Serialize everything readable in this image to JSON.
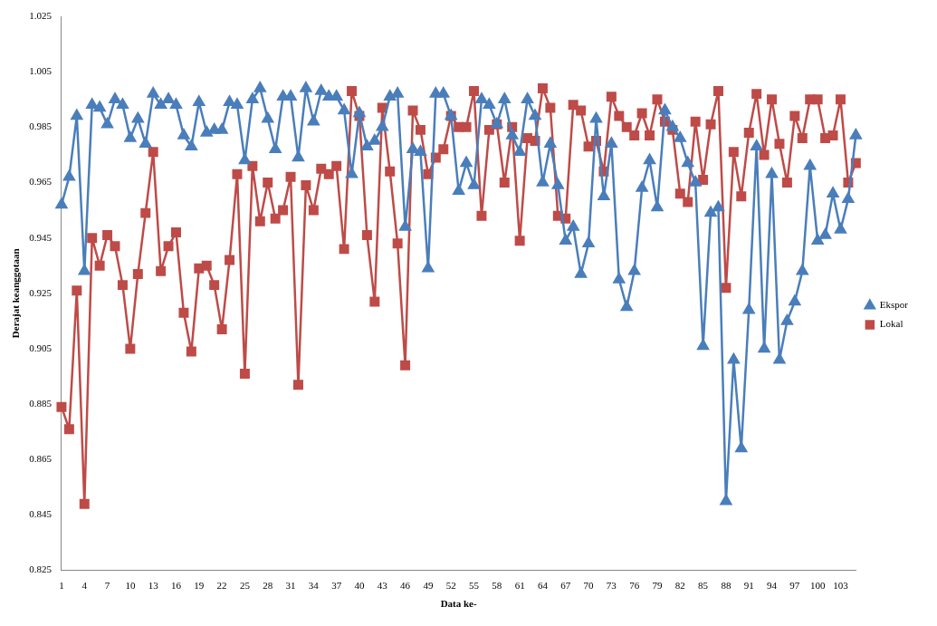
{
  "chart_data": {
    "type": "line",
    "xlabel": "Data ke-",
    "ylabel": "Derajat keanggotaan",
    "categories": [
      "1",
      null,
      null,
      "4",
      null,
      null,
      "7",
      null,
      null,
      "10",
      null,
      null,
      "13",
      null,
      null,
      "16",
      null,
      null,
      "19",
      null,
      null,
      "22",
      null,
      null,
      "25",
      null,
      null,
      "28",
      null,
      null,
      "31",
      null,
      null,
      "34",
      null,
      null,
      "37",
      null,
      null,
      "40",
      null,
      null,
      "43",
      null,
      null,
      "46",
      null,
      null,
      "49",
      null,
      null,
      "52",
      null,
      null,
      "55",
      null,
      null,
      "58",
      null,
      null,
      "61",
      null,
      null,
      "64",
      null,
      null,
      "67",
      null,
      null,
      "70",
      null,
      null,
      "73",
      null,
      null,
      "76",
      null,
      null,
      "79",
      null,
      null,
      "82",
      null,
      null,
      "85",
      null,
      null,
      "88",
      null,
      null,
      "91",
      null,
      null,
      "94",
      null,
      null,
      "97",
      null,
      null,
      "100",
      null,
      null,
      "103",
      null,
      null
    ],
    "series": [
      {
        "name": "Ekspor",
        "color": "#4a7ebb",
        "marker": "triangle",
        "values": [
          0.957,
          0.967,
          0.989,
          0.933,
          0.993,
          0.992,
          0.986,
          0.995,
          0.993,
          0.981,
          0.988,
          0.979,
          0.997,
          0.993,
          0.995,
          0.993,
          0.982,
          0.978,
          0.994,
          0.983,
          0.984,
          0.984,
          0.994,
          0.993,
          0.973,
          0.995,
          0.999,
          0.988,
          0.977,
          0.996,
          0.996,
          0.974,
          0.999,
          0.987,
          0.998,
          0.996,
          0.996,
          0.991,
          0.968,
          0.99,
          0.978,
          0.98,
          0.985,
          0.996,
          0.997,
          0.949,
          0.977,
          0.976,
          0.934,
          0.997,
          0.997,
          0.989,
          0.962,
          0.972,
          0.964,
          0.995,
          0.993,
          0.986,
          0.995,
          0.982,
          0.976,
          0.995,
          0.989,
          0.965,
          0.979,
          0.964,
          0.944,
          0.949,
          0.932,
          0.943,
          0.988,
          0.96,
          0.979,
          0.93,
          0.92,
          0.933,
          0.963,
          0.973,
          0.956,
          0.991,
          0.985,
          0.981,
          0.972,
          0.965,
          0.906,
          0.954,
          0.956,
          0.85,
          0.901,
          0.869,
          0.919,
          0.978,
          0.905,
          0.968,
          0.901,
          0.915,
          0.922,
          0.933,
          0.971,
          0.944,
          0.946,
          0.961,
          0.948,
          0.959,
          0.982
        ]
      },
      {
        "name": "Lokal",
        "color": "#be4b48",
        "marker": "square",
        "values": [
          0.884,
          0.876,
          0.926,
          0.849,
          0.945,
          0.935,
          0.946,
          0.942,
          0.928,
          0.905,
          0.932,
          0.954,
          0.976,
          0.933,
          0.942,
          0.947,
          0.918,
          0.904,
          0.934,
          0.935,
          0.928,
          0.912,
          0.937,
          0.968,
          0.896,
          0.971,
          0.951,
          0.965,
          0.952,
          0.955,
          0.967,
          0.892,
          0.964,
          0.955,
          0.97,
          0.968,
          0.971,
          0.941,
          0.998,
          0.989,
          0.946,
          0.922,
          0.992,
          0.969,
          0.943,
          0.899,
          0.991,
          0.984,
          0.968,
          0.974,
          0.977,
          0.989,
          0.985,
          0.985,
          0.998,
          0.953,
          0.984,
          0.986,
          0.965,
          0.985,
          0.944,
          0.981,
          0.98,
          0.999,
          0.992,
          0.953,
          0.952,
          0.993,
          0.991,
          0.978,
          0.98,
          0.969,
          0.996,
          0.989,
          0.985,
          0.982,
          0.99,
          0.982,
          0.995,
          0.987,
          0.984,
          0.961,
          0.958,
          0.987,
          0.966,
          0.986,
          0.998,
          0.927,
          0.976,
          0.96,
          0.983,
          0.997,
          0.975,
          0.995,
          0.979,
          0.965,
          0.989,
          0.981,
          0.995,
          0.995,
          0.981,
          0.982,
          0.995,
          0.965,
          0.972
        ]
      }
    ],
    "ylim": [
      0.825,
      1.025
    ],
    "yticks": [
      0.825,
      0.845,
      0.865,
      0.885,
      0.905,
      0.925,
      0.945,
      0.965,
      0.985,
      1.005,
      1.025
    ],
    "grid": false,
    "legend": "right",
    "line_style": "solid"
  }
}
